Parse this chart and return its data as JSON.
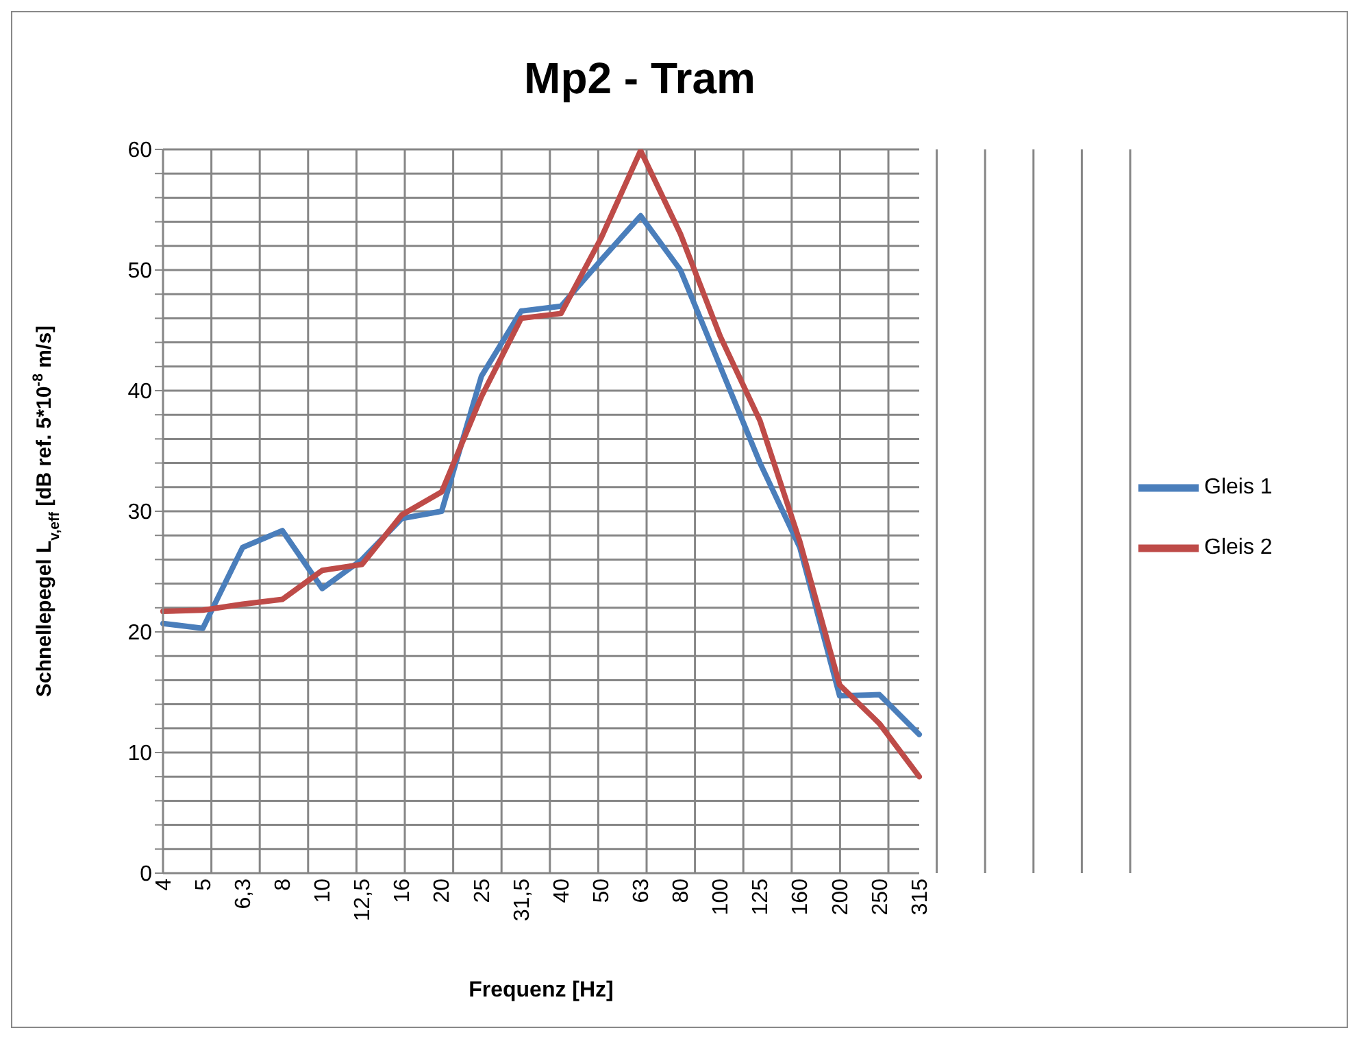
{
  "chart_data": {
    "type": "line",
    "title": "Mp2 - Tram",
    "xlabel": "Frequenz [Hz]",
    "ylabel": "Schnellepegel L$_{v,eff}$ [dB ref. 5*10$^{-8}$ m/s]",
    "categories": [
      "4",
      "5",
      "6,3",
      "8",
      "10",
      "12,5",
      "16",
      "20",
      "25",
      "31,5",
      "40",
      "50",
      "63",
      "80",
      "100",
      "125",
      "160",
      "200",
      "250",
      "315"
    ],
    "series": [
      {
        "name": "Gleis 1",
        "color": "#4a7ebb",
        "values": [
          20.7,
          20.3,
          27,
          28.4,
          23.6,
          26,
          29.4,
          30,
          41.2,
          46.6,
          47,
          50.8,
          54.5,
          50,
          42,
          34,
          27,
          14.7,
          14.8,
          11.5
        ]
      },
      {
        "name": "Gleis 2",
        "color": "#be4b48",
        "values": [
          21.7,
          21.8,
          22.3,
          22.7,
          25.1,
          25.6,
          29.7,
          31.6,
          39.5,
          46,
          46.4,
          52.6,
          59.9,
          53,
          44.5,
          37.5,
          27.5,
          15.6,
          12.4,
          8
        ]
      }
    ],
    "ylim": [
      0,
      60
    ],
    "yticks": [
      0,
      {
        "value": 2,
        "label": null
      },
      {
        "value": 4,
        "label": null
      },
      {
        "value": 6,
        "label": null
      },
      {
        "value": 8,
        "label": null
      },
      10,
      {
        "value": 12,
        "label": null
      },
      {
        "value": 14,
        "label": null
      },
      {
        "value": 16,
        "label": null
      },
      {
        "value": 18,
        "label": null
      },
      20,
      {
        "value": 22,
        "label": null
      },
      {
        "value": 24,
        "label": null
      },
      {
        "value": 26,
        "label": null
      },
      {
        "value": 28,
        "label": null
      },
      30,
      {
        "value": 32,
        "label": null
      },
      {
        "value": 34,
        "label": null
      },
      {
        "value": 36,
        "label": null
      },
      {
        "value": 38,
        "label": null
      },
      40,
      {
        "value": 42,
        "label": null
      },
      {
        "value": 44,
        "label": null
      },
      {
        "value": 46,
        "label": null
      },
      {
        "value": 48,
        "label": null
      },
      50,
      {
        "value": 52,
        "label": null
      },
      {
        "value": 54,
        "label": null
      },
      {
        "value": 56,
        "label": null
      },
      {
        "value": 58,
        "label": null
      },
      60
    ],
    "grid": true,
    "legend": "right",
    "marker": "none",
    "line_style": "solid"
  }
}
